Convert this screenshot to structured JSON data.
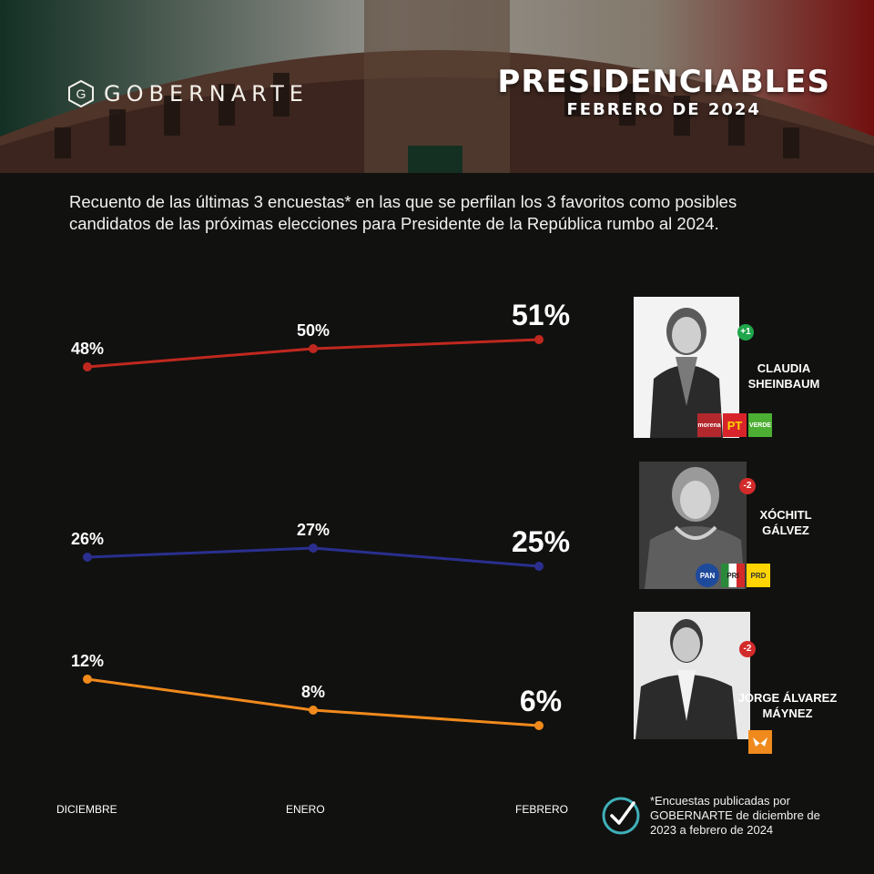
{
  "header": {
    "logo_text": "GOBERNARTE",
    "title": "PRESIDENCIABLES",
    "subtitle": "FEBRERO DE 2024"
  },
  "intro_text": "Recuento de las últimas 3 encuestas* en las que se perfilan los 3 favoritos como posibles candidatos de las próximas elecciones para Presidente de la República rumbo al 2024.",
  "chart_data": {
    "type": "line",
    "categories": [
      "DICIEMBRE",
      "ENERO",
      "FEBRERO"
    ],
    "series": [
      {
        "name": "CLAUDIA SHEINBAUM",
        "values": [
          48,
          50,
          51
        ],
        "labels": [
          "48%",
          "50%",
          "51%"
        ],
        "color": "#c0281f",
        "change": "+1",
        "change_color": "#1fa64a",
        "parties": [
          "morena",
          "PT",
          "VERDE"
        ]
      },
      {
        "name": "XÓCHITL GÁLVEZ",
        "values": [
          26,
          27,
          25
        ],
        "labels": [
          "26%",
          "27%",
          "25%"
        ],
        "color": "#2a2f8f",
        "change": "-2",
        "change_color": "#d32a2a",
        "parties": [
          "PAN",
          "PRI",
          "PRD"
        ]
      },
      {
        "name": "JORGE ÁLVAREZ MÁYNEZ",
        "values": [
          12,
          8,
          6
        ],
        "labels": [
          "12%",
          "8%",
          "6%"
        ],
        "color": "#f08a1c",
        "change": "-2",
        "change_color": "#d32a2a",
        "parties": [
          "MC"
        ]
      }
    ]
  },
  "candidates": [
    {
      "name_line1": "CLAUDIA",
      "name_line2": "SHEINBAUM"
    },
    {
      "name_line1": "XÓCHITL",
      "name_line2": "GÁLVEZ"
    },
    {
      "name_line1": "JORGE ÁLVAREZ",
      "name_line2": "MÁYNEZ"
    }
  ],
  "footnote": "*Encuestas publicadas por GOBERNARTE de diciembre de 2023 a febrero de 2024",
  "icons": {
    "check": "check-circle-icon",
    "logo": "gobernarte-logo-icon"
  },
  "colors": {
    "background": "#111110",
    "check": "#3fb0b8"
  }
}
